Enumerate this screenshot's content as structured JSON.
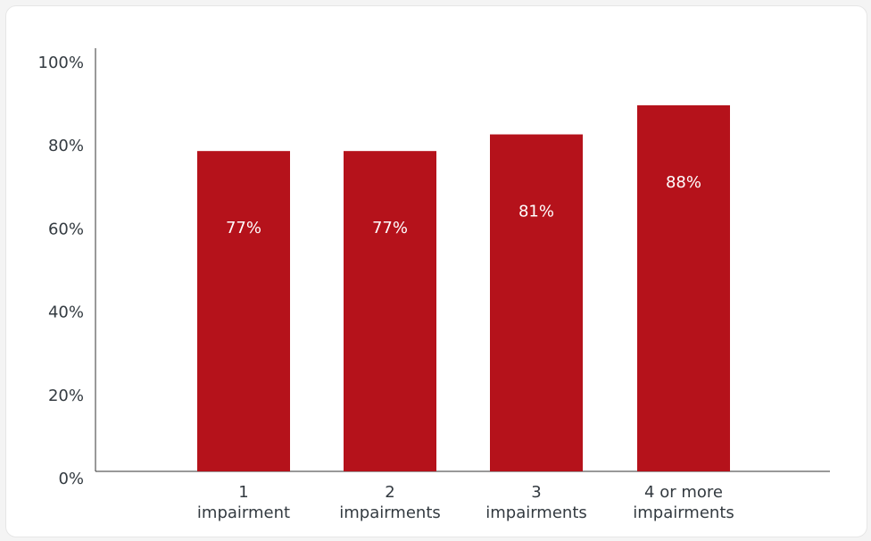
{
  "chart_data": {
    "type": "bar",
    "categories": [
      [
        "1",
        "impairment"
      ],
      [
        "2",
        "impairments"
      ],
      [
        "3",
        "impairments"
      ],
      [
        "4 or more",
        "impairments"
      ]
    ],
    "values": [
      77,
      77,
      81,
      88
    ],
    "data_labels": [
      "77%",
      "77%",
      "81%",
      "88%"
    ],
    "ylim": [
      0,
      100
    ],
    "yticks": [
      0,
      20,
      40,
      60,
      80,
      100
    ],
    "ytick_labels": [
      "0%",
      "20%",
      "40%",
      "60%",
      "80%",
      "100%"
    ],
    "title": "",
    "xlabel": "",
    "ylabel": "",
    "grid": false,
    "colors": {
      "bar": "#b5121b",
      "axis": "#333333",
      "text": "#333a40",
      "data_label": "#ffffff"
    }
  }
}
